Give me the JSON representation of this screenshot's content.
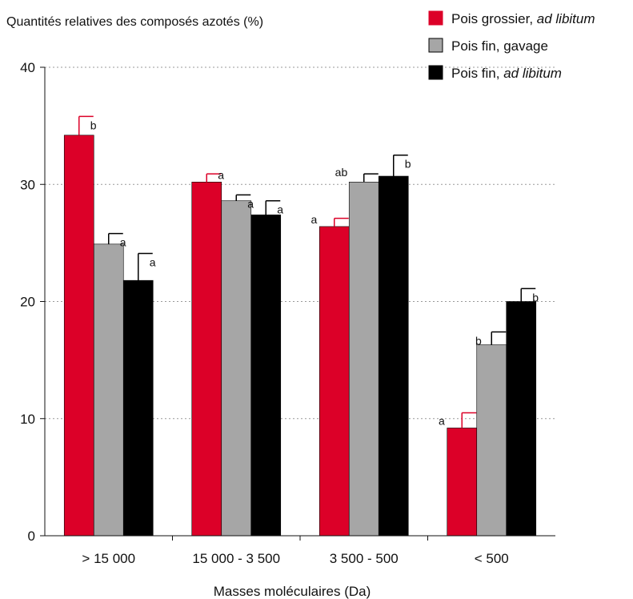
{
  "chart_data": {
    "type": "bar",
    "title": "",
    "ylabel": "Quantités relatives des composés azotés (%)",
    "xlabel": "Masses moléculaires (Da)",
    "categories": [
      "> 15 000",
      "15 000 - 3 500",
      "3 500 - 500",
      "< 500"
    ],
    "ylim": [
      0,
      40
    ],
    "yticks": [
      "0",
      "10",
      "20",
      "30",
      "40"
    ],
    "grid": "horizontal-dotted",
    "legend_position": "top-right",
    "series": [
      {
        "name": "Pois grossier, ad libitum",
        "name_main": "Pois grossier, ",
        "name_italic": "ad libitum",
        "color": "#dc0028",
        "values": [
          34.2,
          30.2,
          26.4,
          9.2
        ],
        "errors": [
          1.6,
          0.7,
          0.7,
          1.3
        ],
        "letters": [
          "b",
          "a",
          "a",
          "a"
        ]
      },
      {
        "name": "Pois fin, gavage",
        "name_main": "Pois fin, gavage",
        "name_italic": "",
        "color": "#a6a6a6",
        "values": [
          24.9,
          28.6,
          30.2,
          16.3
        ],
        "errors": [
          0.9,
          0.5,
          0.7,
          1.1
        ],
        "letters": [
          "a",
          "a",
          "ab",
          "b"
        ]
      },
      {
        "name": "Pois fin, ad libitum",
        "name_main": "Pois fin, ",
        "name_italic": "ad libitum",
        "color": "#000000",
        "values": [
          21.8,
          27.4,
          30.7,
          20.0
        ],
        "errors": [
          2.3,
          1.2,
          1.8,
          1.1
        ],
        "letters": [
          "a",
          "a",
          "b",
          "b"
        ]
      }
    ]
  }
}
